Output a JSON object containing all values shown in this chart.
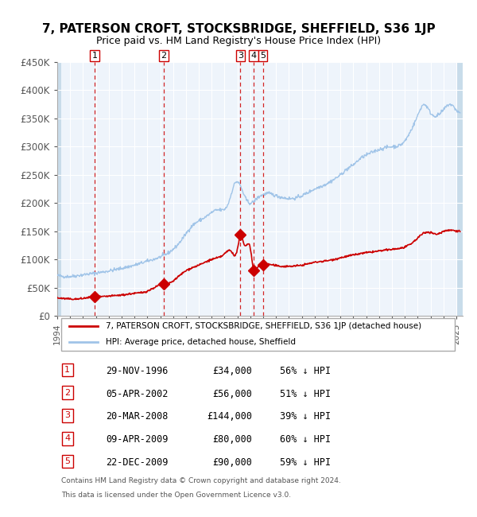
{
  "title": "7, PATERSON CROFT, STOCKSBRIDGE, SHEFFIELD, S36 1JP",
  "subtitle": "Price paid vs. HM Land Registry's House Price Index (HPI)",
  "legend_property": "7, PATERSON CROFT, STOCKSBRIDGE, SHEFFIELD, S36 1JP (detached house)",
  "legend_hpi": "HPI: Average price, detached house, Sheffield",
  "footer1": "Contains HM Land Registry data © Crown copyright and database right 2024.",
  "footer2": "This data is licensed under the Open Government Licence v3.0.",
  "transactions": [
    {
      "num": 1,
      "date": "29-NOV-1996",
      "year": 1996.91,
      "price": 34000,
      "pct": "56%",
      "dir": "↓"
    },
    {
      "num": 2,
      "date": "05-APR-2002",
      "year": 2002.26,
      "price": 56000,
      "pct": "51%",
      "dir": "↓"
    },
    {
      "num": 3,
      "date": "20-MAR-2008",
      "year": 2008.22,
      "price": 144000,
      "pct": "39%",
      "dir": "↓"
    },
    {
      "num": 4,
      "date": "09-APR-2009",
      "year": 2009.27,
      "price": 80000,
      "pct": "60%",
      "dir": "↓"
    },
    {
      "num": 5,
      "date": "22-DEC-2009",
      "year": 2009.97,
      "price": 90000,
      "pct": "59%",
      "dir": "↓"
    }
  ],
  "hpi_color": "#a0c4e8",
  "property_color": "#cc0000",
  "vline_color": "#cc0000",
  "bg_hatch_color": "#d0e4f0",
  "ylim": [
    0,
    450000
  ],
  "xlim_start": 1994.0,
  "xlim_end": 2025.5,
  "ytick_labels": [
    "£0",
    "£50K",
    "£100K",
    "£150K",
    "£200K",
    "£250K",
    "£300K",
    "£350K",
    "£400K",
    "£450K"
  ],
  "ytick_values": [
    0,
    50000,
    100000,
    150000,
    200000,
    250000,
    300000,
    350000,
    400000,
    450000
  ]
}
